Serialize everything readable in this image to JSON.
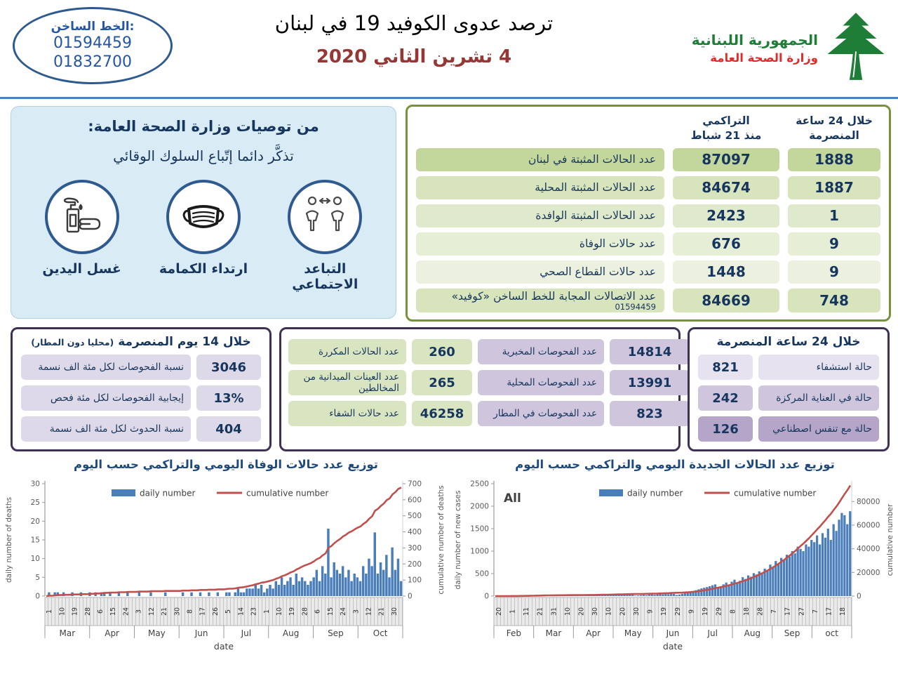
{
  "colors": {
    "accent_blue": "#4f81bd",
    "bar_blue": "#4a7ebb",
    "line_red": "#c0504d",
    "navy": "#17365d",
    "green_border": "#76923c",
    "purple_border": "#3f3151",
    "logo_green": "#1e7d36",
    "logo_red": "#e02b2b",
    "date_red": "#953735"
  },
  "header": {
    "hotline": {
      "label": "الخط الساخن:",
      "numbers": [
        "01594459",
        "01832700"
      ]
    },
    "title": "ترصد عدوى الكوفيد 19 في لبنان",
    "date": "4 تشرين الثاني 2020",
    "ministry": {
      "line1": "الجمهورية اللبنانية",
      "line2": "وزارة الصحة العامة"
    }
  },
  "recommendations": {
    "title": "من توصيات وزارة الصحة العامة:",
    "subtitle": "تذكَّر دائما إتّباع السلوك الوقائي",
    "items": [
      {
        "icon": "hand-wash-icon",
        "label": "غسل اليدين"
      },
      {
        "icon": "mask-icon",
        "label": "ارتداء الكمامة"
      },
      {
        "icon": "social-distance-icon",
        "label": "التباعد الاجتماعي"
      }
    ]
  },
  "main_table": {
    "col_cumulative": "التراكمي\nمنذ 21 شباط",
    "col_24h": "خلال 24 ساعة\nالمنصرمة",
    "rows": [
      {
        "label": "عدد الحالات المثبتة في لبنان",
        "sub": "",
        "cumulative": "87097",
        "h24": "1888",
        "tone": "a"
      },
      {
        "label": "عدد الحالات المثبتة المحلية",
        "sub": "",
        "cumulative": "84674",
        "h24": "1887",
        "tone": "b"
      },
      {
        "label": "عدد الحالات المثبتة الوافدة",
        "sub": "",
        "cumulative": "2423",
        "h24": "1",
        "tone": "c"
      },
      {
        "label": "عدد حالات الوفاة",
        "sub": "",
        "cumulative": "676",
        "h24": "9",
        "tone": "d"
      },
      {
        "label": "عدد حالات القطاع الصحي",
        "sub": "",
        "cumulative": "1448",
        "h24": "9",
        "tone": "e"
      },
      {
        "label": "عدد الاتصالات المجابة  للخط الساخن «كوفيد»",
        "sub": "01594459",
        "cumulative": "84669",
        "h24": "748",
        "tone": "b"
      }
    ]
  },
  "panel_14d": {
    "title": "خلال 14 يوم المنصرمة ",
    "title_small": "(محليا دون المطار)",
    "rows": [
      {
        "label": "نسبة الفحوصات لكل مئة الف نسمة",
        "value": "3046"
      },
      {
        "label": "إيجابية الفحوصات لكل مئة فحص",
        "value": "13%"
      },
      {
        "label": "نسبة الحدوث لكل مئة الف نسمة",
        "value": "404"
      }
    ]
  },
  "panel_tests": {
    "green_rows": [
      {
        "label": "عدد الحالات المكررة",
        "value": "260"
      },
      {
        "label": "عدد العينات الميدانية من المخالطين",
        "value": "265"
      },
      {
        "label": "عدد حالات الشفاء",
        "value": "46258"
      }
    ],
    "purple_rows": [
      {
        "label": "عدد الفحوصات المخبرية",
        "value": "14814"
      },
      {
        "label": "عدد الفحوصات المحلية",
        "value": "13991"
      },
      {
        "label": "عدد الفحوصات في المطار",
        "value": "823"
      }
    ]
  },
  "panel_24h": {
    "title": "خلال 24 ساعة المنصرمة",
    "rows": [
      {
        "value": "821",
        "label": "حالة استشفاء"
      },
      {
        "value": "242",
        "label": "حالة في العناية المركزة"
      },
      {
        "value": "126",
        "label": "حالة مع تنفس اصطناعي"
      }
    ]
  },
  "chart_data": [
    {
      "type": "bar",
      "title": "توزيع عدد حالات  الوفاة اليومي والتراكمي حسب اليوم",
      "legend": [
        "daily number",
        "cumulative number"
      ],
      "xlabel": "date",
      "ylabel_left": "daily number of deaths",
      "ylabel_right": "cumulative number of deaths",
      "annotation": "",
      "ylim_left": [
        0,
        30
      ],
      "yticks_left": [
        0,
        5,
        10,
        15,
        20,
        25,
        30
      ],
      "ylim_right": [
        0,
        700
      ],
      "yticks_right": [
        0,
        100,
        200,
        300,
        400,
        500,
        600,
        700
      ],
      "days_per_bar": 2,
      "cumulative_end": 676,
      "day_ticks": [
        "1",
        "10",
        "19",
        "28",
        "6",
        "15",
        "24",
        "3",
        "12",
        "21",
        "30",
        "8",
        "17",
        "26",
        "5",
        "14",
        "23",
        "1",
        "10",
        "19",
        "28",
        "6",
        "15",
        "24",
        "3",
        "12",
        "21",
        "30"
      ],
      "months": [
        "Mar",
        "Apr",
        "May",
        "Jun",
        "Jul",
        "Aug",
        "Sep",
        "Oct"
      ],
      "daily": [
        0,
        1,
        0,
        1,
        1,
        0,
        1,
        0,
        0,
        1,
        0,
        0,
        1,
        0,
        0,
        1,
        0,
        1,
        0,
        1,
        1,
        0,
        1,
        0,
        0,
        1,
        0,
        0,
        1,
        0,
        0,
        0,
        1,
        0,
        0,
        0,
        1,
        0,
        0,
        0,
        0,
        1,
        0,
        0,
        0,
        0,
        0,
        1,
        0,
        0,
        1,
        0,
        0,
        1,
        0,
        0,
        1,
        0,
        0,
        1,
        0,
        0,
        1,
        1,
        0,
        1,
        2,
        1,
        1,
        2,
        2,
        2,
        3,
        2,
        3,
        1,
        2,
        3,
        2,
        4,
        3,
        5,
        3,
        4,
        5,
        3,
        6,
        4,
        5,
        4,
        3,
        4,
        5,
        7,
        4,
        8,
        6,
        18,
        5,
        9,
        7,
        6,
        8,
        5,
        7,
        4,
        6,
        5,
        4,
        8,
        6,
        10,
        8,
        17,
        6,
        9,
        7,
        11,
        5,
        13,
        7,
        10,
        4
      ]
    },
    {
      "type": "bar",
      "title": "توزيع عدد الحالات الجديدة اليومي والتراكمي حسب اليوم",
      "legend": [
        "daily number",
        "cumulative number"
      ],
      "xlabel": "date",
      "ylabel_left": "daily number of new cases",
      "ylabel_right": "cumulative number",
      "annotation": "All",
      "ylim_left": [
        0,
        2500
      ],
      "yticks_left": [
        0,
        500,
        1000,
        1500,
        2000,
        2500
      ],
      "ylim_right": [
        0,
        95000
      ],
      "yticks_right": [
        0,
        20000,
        40000,
        60000,
        80000
      ],
      "days_per_bar": 2,
      "cumulative_end": 87097,
      "day_ticks": [
        "20",
        "1",
        "11",
        "21",
        "31",
        "10",
        "20",
        "30",
        "10",
        "20",
        "30",
        "9",
        "19",
        "29",
        "9",
        "19",
        "29",
        "8",
        "18",
        "28",
        "7",
        "17",
        "27",
        "7",
        "17",
        "18"
      ],
      "months": [
        "Feb",
        "Mar",
        "Apr",
        "May",
        "Jun",
        "Jul",
        "Aug",
        "Sep",
        "oct"
      ],
      "daily": [
        1,
        0,
        2,
        1,
        3,
        3,
        5,
        8,
        10,
        12,
        15,
        18,
        20,
        25,
        22,
        28,
        30,
        26,
        32,
        30,
        15,
        12,
        18,
        10,
        14,
        8,
        12,
        16,
        10,
        12,
        8,
        10,
        6,
        12,
        10,
        8,
        12,
        20,
        26,
        30,
        22,
        18,
        25,
        30,
        35,
        28,
        32,
        26,
        30,
        24,
        28,
        10,
        15,
        20,
        25,
        18,
        30,
        35,
        28,
        40,
        45,
        38,
        50,
        42,
        55,
        48,
        25,
        35,
        50,
        65,
        80,
        95,
        110,
        130,
        150,
        170,
        185,
        200,
        220,
        240,
        260,
        180,
        220,
        260,
        300,
        255,
        320,
        365,
        295,
        340,
        420,
        380,
        460,
        430,
        510,
        480,
        550,
        520,
        610,
        580,
        700,
        650,
        780,
        720,
        850,
        800,
        920,
        880,
        1000,
        950,
        1100,
        1050,
        1000,
        1150,
        1100,
        1250,
        1200,
        1350,
        1150,
        1400,
        1300,
        1500,
        1250,
        1600,
        1450,
        1700,
        1850,
        1800,
        1600,
        1888
      ]
    }
  ]
}
